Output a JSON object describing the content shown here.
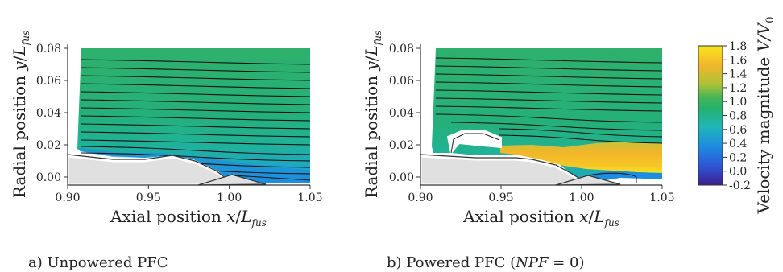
{
  "colors": {
    "colormap": [
      "#3b1f8f",
      "#2f56d6",
      "#1d8de0",
      "#1fb6b8",
      "#25b06e",
      "#46b458",
      "#a8c23a",
      "#f2b62a",
      "#f7e51f"
    ],
    "wall": "#e0e0e0",
    "streamline": "#111111"
  },
  "chart_data": [
    {
      "panel": "a",
      "type": "heatmap",
      "caption": "a) Unpowered PFC",
      "xlabel": {
        "main": "Axial position ",
        "var": "x",
        "slash": "/",
        "L": "L",
        "sub": "fus"
      },
      "ylabel": {
        "main": "Radial position ",
        "var": "y",
        "slash": "/",
        "L": "L",
        "sub": "fus"
      },
      "xlim": [
        0.9,
        1.05
      ],
      "ylim": [
        -0.005,
        0.08
      ],
      "xticks": [
        "0.90",
        "0.95",
        "1.00",
        "1.05"
      ],
      "yticks": [
        "0.00",
        "0.02",
        "0.04",
        "0.06",
        "0.08"
      ],
      "field_velocity": {
        "upper": 1.05,
        "near_wall": 0.45
      },
      "streamline_y0": [
        0.007,
        0.011,
        0.015,
        0.019,
        0.023,
        0.028,
        0.033,
        0.038,
        0.043,
        0.048,
        0.053,
        0.058,
        0.063,
        0.068,
        0.073
      ]
    },
    {
      "panel": "b",
      "type": "heatmap",
      "caption_prefix": "b) Powered PFC (",
      "caption_italic": "NPF",
      "caption_suffix": " = 0)",
      "xlabel": {
        "main": "Axial position ",
        "var": "x",
        "slash": "/",
        "L": "L",
        "sub": "fus"
      },
      "ylabel": {
        "main": "Radial position ",
        "var": "y",
        "slash": "/",
        "L": "L",
        "sub": "fus"
      },
      "xlim": [
        0.9,
        1.05
      ],
      "ylim": [
        -0.005,
        0.08
      ],
      "xticks": [
        "0.90",
        "0.95",
        "1.00",
        "1.05"
      ],
      "yticks": [
        "0.00",
        "0.02",
        "0.04",
        "0.06",
        "0.08"
      ],
      "field_velocity": {
        "upper": 1.05,
        "jet": 1.5
      },
      "streamline_y0": [
        0.026,
        0.03,
        0.034,
        0.039,
        0.044,
        0.049,
        0.054,
        0.059,
        0.064,
        0.069,
        0.074
      ]
    }
  ],
  "colorbar": {
    "label_prefix": "Velocity magnitude ",
    "label_math": "V/V",
    "label_sub": "0",
    "ticks": [
      "1.8",
      "1.6",
      "1.4",
      "1.2",
      "1.0",
      "0.8",
      "0.6",
      "0.4",
      "0.2",
      "0.0",
      "-0.2"
    ],
    "range": [
      -0.2,
      1.8
    ]
  }
}
